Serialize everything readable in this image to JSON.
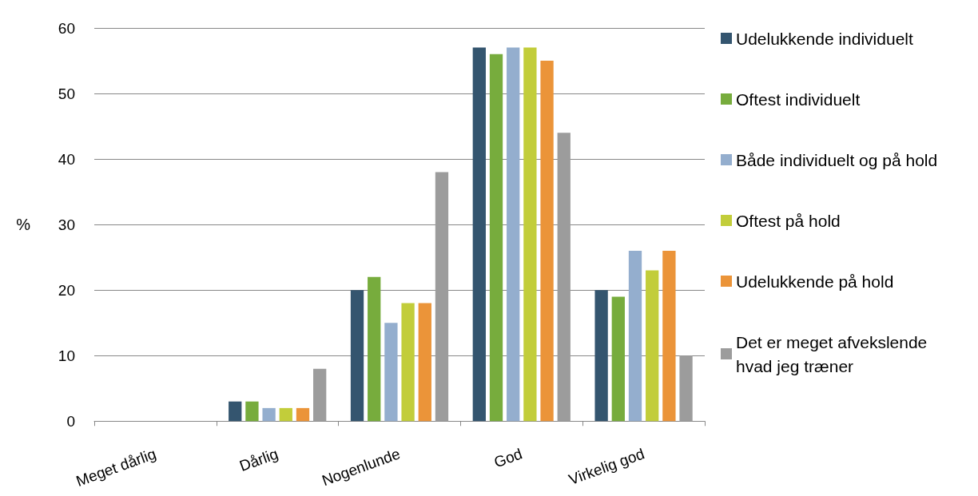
{
  "chart_data": {
    "type": "bar",
    "ylabel": "%",
    "categories": [
      "Meget dårlig",
      "Dårlig",
      "Nogenlunde",
      "God",
      "Virkelig god"
    ],
    "series": [
      {
        "name": "Udelukkende individuelt",
        "color": "#34556f",
        "values": [
          0,
          3,
          20,
          57,
          20
        ]
      },
      {
        "name": "Oftest individuelt",
        "color": "#77ac3d",
        "values": [
          0,
          3,
          22,
          56,
          19
        ]
      },
      {
        "name": "Både individuelt og på hold",
        "color": "#94aece",
        "values": [
          0,
          2,
          15,
          57,
          26
        ]
      },
      {
        "name": "Oftest på hold",
        "color": "#c2cd3a",
        "values": [
          0,
          2,
          18,
          57,
          23
        ]
      },
      {
        "name": "Udelukkende på hold",
        "color": "#eb9439",
        "values": [
          0,
          2,
          18,
          55,
          26
        ]
      },
      {
        "name": "Det er meget afvekslende hvad jeg træner",
        "color": "#9c9c9c",
        "values": [
          0,
          8,
          38,
          44,
          10
        ]
      }
    ],
    "ylim": [
      0,
      60
    ],
    "yticks": [
      0,
      10,
      20,
      30,
      40,
      50,
      60
    ],
    "grid": "y",
    "legend": "right"
  }
}
